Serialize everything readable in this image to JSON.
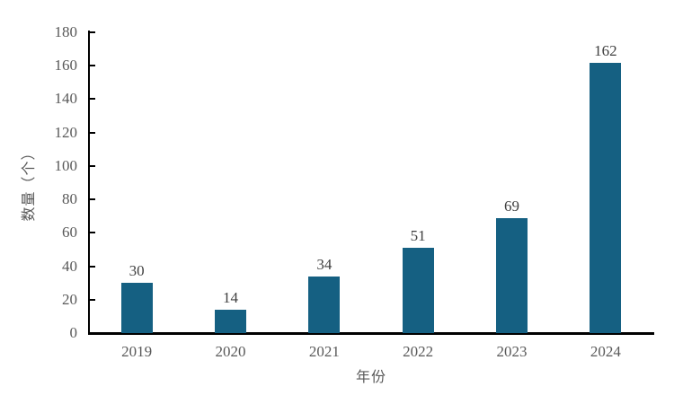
{
  "chart_data": {
    "type": "bar",
    "title": "",
    "categories": [
      "2019",
      "2020",
      "2021",
      "2022",
      "2023",
      "2024"
    ],
    "values": [
      30,
      14,
      34,
      51,
      69,
      162
    ],
    "xlabel": "年份",
    "ylabel": "数量（个）",
    "ylim": [
      0,
      180
    ],
    "ytick_step": 20,
    "yticks": [
      0,
      20,
      40,
      60,
      80,
      100,
      120,
      140,
      160,
      180
    ],
    "grid": false,
    "legend": "none",
    "data_labels": true,
    "colors": {
      "bar": "#156082",
      "axis": "#000000",
      "tick_label": "#595959",
      "axis_title": "#595959",
      "value_label": "#404040",
      "background": "#ffffff"
    }
  }
}
